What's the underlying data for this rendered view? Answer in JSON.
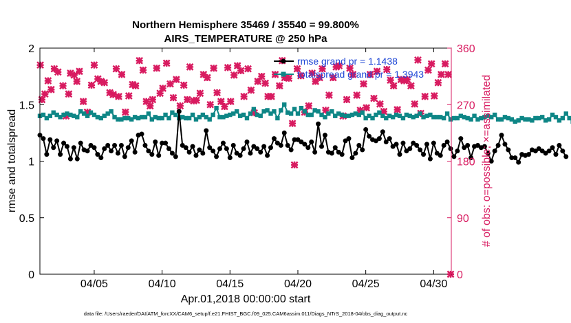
{
  "chart_data": {
    "type": "line",
    "title_line1": "Northern Hemisphere 35469 / 35540 = 99.800%",
    "title_line2": "AIRS_TEMPERATURE @ 250 hPa",
    "xlabel": "Apr.01,2018 00:00:00 start",
    "ylabel_left": "rmse and totalspread",
    "ylabel_right": "# of obs: o=possible; ×=assimilated",
    "footnote": "data file: /Users/raeder/DAI/ATM_forcXX/CAM6_setup/f.e21.FHIST_BGC.f09_025.CAM6assim.011/Diags_NTrS_2018-04/obs_diag_output.nc",
    "xlim": [
      1,
      31.3
    ],
    "ylim_left": [
      0,
      2
    ],
    "ylim_right": [
      0,
      360
    ],
    "left_ticks": [
      {
        "value": 0,
        "label": "0"
      },
      {
        "value": 0.5,
        "label": "0.5"
      },
      {
        "value": 1,
        "label": "1"
      },
      {
        "value": 1.5,
        "label": "1.5"
      },
      {
        "value": 2,
        "label": "2"
      }
    ],
    "right_ticks": [
      {
        "value": 0,
        "label": "0"
      },
      {
        "value": 90,
        "label": "90"
      },
      {
        "value": 180,
        "label": "180"
      },
      {
        "value": 270,
        "label": "270"
      },
      {
        "value": 360,
        "label": "360"
      }
    ],
    "x_ticks": [
      {
        "value": 5,
        "label": "04/05"
      },
      {
        "value": 10,
        "label": "04/10"
      },
      {
        "value": 15,
        "label": "04/15"
      },
      {
        "value": 20,
        "label": "04/20"
      },
      {
        "value": 25,
        "label": "04/25"
      },
      {
        "value": 30,
        "label": "04/30"
      }
    ],
    "series": [
      {
        "name": "rmse",
        "legend": "rmse grand pr = 1.1438",
        "color": "#000000",
        "x_start": 1.0,
        "x_step": 0.25,
        "values": [
          1.23,
          1.2,
          1.06,
          1.19,
          1.12,
          1.18,
          1.06,
          1.16,
          1.13,
          1.02,
          1.12,
          1.02,
          1.16,
          1.1,
          1.09,
          1.14,
          1.12,
          1.06,
          1.03,
          1.11,
          1.14,
          1.09,
          1.14,
          1.07,
          1.14,
          1.04,
          1.12,
          1.18,
          1.08,
          1.23,
          1.24,
          1.14,
          1.09,
          1.06,
          1.17,
          1.05,
          1.16,
          1.16,
          1.11,
          1.07,
          1.04,
          1.44,
          1.14,
          1.12,
          1.08,
          1.13,
          1.05,
          1.1,
          1.07,
          1.27,
          1.12,
          1.09,
          1.04,
          1.11,
          1.16,
          1.11,
          1.03,
          1.14,
          1.07,
          1.05,
          1.11,
          1.17,
          1.07,
          1.13,
          1.11,
          1.08,
          1.13,
          1.05,
          1.12,
          1.2,
          1.16,
          1.14,
          1.25,
          1.14,
          1.1,
          1.19,
          1.19,
          1.17,
          1.15,
          1.12,
          1.17,
          1.08,
          1.33,
          1.13,
          1.23,
          1.08,
          1.07,
          1.12,
          1.08,
          1.06,
          1.18,
          1.2,
          1.03,
          1.07,
          1.14,
          1.1,
          1.28,
          1.22,
          1.19,
          1.18,
          1.2,
          1.26,
          1.17,
          1.2,
          1.13,
          1.15,
          1.06,
          1.16,
          1.09,
          1.11,
          1.16,
          1.14,
          1.1,
          1.06,
          1.15,
          1.02,
          1.16,
          1.07,
          1.05,
          1.14,
          1.17,
          1.11,
          1.04,
          1.09,
          1.2,
          1.12,
          1.14,
          1.03,
          1.13,
          1.14,
          1.12,
          1.13,
          1.07,
          1.0,
          1.09,
          1.14,
          1.23,
          1.15,
          1.1,
          1.03,
          1.03,
          0.99,
          1.06,
          1.05,
          1.06,
          1.1,
          1.09,
          1.11,
          1.09,
          1.07,
          1.09,
          1.12,
          1.06,
          1.14,
          1.09,
          1.04
        ]
      },
      {
        "name": "totalspread",
        "legend": "totalspread grand pr = 1.3943",
        "color": "#0e8686",
        "x_start": 1.0,
        "x_step": 0.25,
        "values": [
          1.4,
          1.41,
          1.38,
          1.4,
          1.43,
          1.41,
          1.39,
          1.41,
          1.42,
          1.41,
          1.4,
          1.39,
          1.44,
          1.42,
          1.4,
          1.43,
          1.41,
          1.39,
          1.38,
          1.4,
          1.42,
          1.44,
          1.39,
          1.37,
          1.37,
          1.38,
          1.38,
          1.37,
          1.39,
          1.38,
          1.39,
          1.39,
          1.42,
          1.37,
          1.39,
          1.38,
          1.38,
          1.41,
          1.38,
          1.43,
          1.41,
          1.38,
          1.39,
          1.38,
          1.38,
          1.41,
          1.37,
          1.39,
          1.41,
          1.39,
          1.37,
          1.41,
          1.47,
          1.39,
          1.39,
          1.4,
          1.41,
          1.42,
          1.44,
          1.4,
          1.41,
          1.38,
          1.42,
          1.46,
          1.41,
          1.4,
          1.44,
          1.45,
          1.42,
          1.44,
          1.38,
          1.45,
          1.5,
          1.43,
          1.42,
          1.46,
          1.42,
          1.47,
          1.44,
          1.41,
          1.41,
          1.45,
          1.44,
          1.41,
          1.39,
          1.42,
          1.44,
          1.4,
          1.42,
          1.41,
          1.4,
          1.4,
          1.41,
          1.42,
          1.41,
          1.43,
          1.38,
          1.4,
          1.38,
          1.41,
          1.43,
          1.4,
          1.38,
          1.4,
          1.39,
          1.41,
          1.4,
          1.38,
          1.41,
          1.4,
          1.39,
          1.4,
          1.42,
          1.39,
          1.4,
          1.41,
          1.39,
          1.39,
          1.39,
          1.38,
          1.42,
          1.37,
          1.38,
          1.38,
          1.4,
          1.39,
          1.38,
          1.37,
          1.4,
          1.37,
          1.38,
          1.39,
          1.4,
          1.39,
          1.41,
          1.37,
          1.37,
          1.39,
          1.38,
          1.37,
          1.35,
          1.36,
          1.38,
          1.37,
          1.37,
          1.36,
          1.38,
          1.38,
          1.39,
          1.36,
          1.37,
          1.41,
          1.39,
          1.36,
          1.38,
          1.42,
          1.38,
          1.35
        ]
      }
    ],
    "obs_points": {
      "name": "# of obs assimilated",
      "marker_color": "#d81b60",
      "points": [
        [
          1.03,
          333
        ],
        [
          1.15,
          278
        ],
        [
          1.37,
          287
        ],
        [
          1.6,
          308
        ],
        [
          1.83,
          294
        ],
        [
          2.06,
          327
        ],
        [
          2.33,
          322
        ],
        [
          2.7,
          300
        ],
        [
          2.93,
          252
        ],
        [
          3.12,
          287
        ],
        [
          3.25,
          320
        ],
        [
          3.52,
          317
        ],
        [
          3.72,
          307
        ],
        [
          3.91,
          323
        ],
        [
          4.2,
          275
        ],
        [
          4.5,
          258
        ],
        [
          4.8,
          301
        ],
        [
          5.0,
          333
        ],
        [
          5.27,
          311
        ],
        [
          5.5,
          307
        ],
        [
          5.75,
          305
        ],
        [
          6.15,
          289
        ],
        [
          6.4,
          286
        ],
        [
          6.62,
          327
        ],
        [
          6.8,
          283
        ],
        [
          7.03,
          318
        ],
        [
          7.3,
          258
        ],
        [
          7.55,
          284
        ],
        [
          7.82,
          302
        ],
        [
          8.05,
          300
        ],
        [
          8.33,
          340
        ],
        [
          8.6,
          325
        ],
        [
          8.84,
          275
        ],
        [
          9.12,
          268
        ],
        [
          9.3,
          278
        ],
        [
          9.6,
          328
        ],
        [
          9.85,
          288
        ],
        [
          10.05,
          296
        ],
        [
          10.33,
          336
        ],
        [
          10.6,
          303
        ],
        [
          10.83,
          281
        ],
        [
          11.05,
          310
        ],
        [
          11.33,
          268
        ],
        [
          11.6,
          301
        ],
        [
          11.86,
          278
        ],
        [
          12.05,
          330
        ],
        [
          12.33,
          276
        ],
        [
          12.53,
          277
        ],
        [
          12.8,
          288
        ],
        [
          13.05,
          318
        ],
        [
          13.33,
          313
        ],
        [
          13.55,
          270
        ],
        [
          13.8,
          328
        ],
        [
          14.05,
          289
        ],
        [
          14.34,
          275
        ],
        [
          14.6,
          267
        ],
        [
          14.84,
          329
        ],
        [
          15.05,
          275
        ],
        [
          15.3,
          317
        ],
        [
          15.55,
          332
        ],
        [
          15.8,
          324
        ],
        [
          16.03,
          283
        ],
        [
          16.33,
          327
        ],
        [
          16.55,
          293
        ],
        [
          16.79,
          257
        ],
        [
          17.05,
          307
        ],
        [
          17.33,
          315
        ],
        [
          17.6,
          304
        ],
        [
          17.8,
          283
        ],
        [
          18.05,
          283
        ],
        [
          18.33,
          318
        ],
        [
          18.65,
          300
        ],
        [
          18.85,
          340
        ],
        [
          19.03,
          313
        ],
        [
          19.33,
          312
        ],
        [
          19.6,
          240
        ],
        [
          19.75,
          174
        ],
        [
          19.95,
          327
        ],
        [
          20.22,
          316
        ],
        [
          20.5,
          258
        ],
        [
          20.8,
          268
        ],
        [
          21.05,
          320
        ],
        [
          21.3,
          307
        ],
        [
          21.6,
          313
        ],
        [
          21.8,
          327
        ],
        [
          22.05,
          261
        ],
        [
          22.3,
          285
        ],
        [
          22.6,
          313
        ],
        [
          22.82,
          330
        ],
        [
          23.03,
          332
        ],
        [
          23.33,
          252
        ],
        [
          23.6,
          278
        ],
        [
          23.83,
          328
        ],
        [
          24.05,
          318
        ],
        [
          24.34,
          285
        ],
        [
          24.6,
          261
        ],
        [
          24.84,
          303
        ],
        [
          25.05,
          265
        ],
        [
          25.33,
          318
        ],
        [
          25.6,
          280
        ],
        [
          25.83,
          323
        ],
        [
          26.05,
          271
        ],
        [
          26.33,
          259
        ],
        [
          26.55,
          326
        ],
        [
          26.82,
          309
        ],
        [
          27.05,
          300
        ],
        [
          27.33,
          262
        ],
        [
          27.6,
          310
        ],
        [
          27.83,
          308
        ],
        [
          28.05,
          310
        ],
        [
          28.33,
          300
        ],
        [
          28.6,
          271
        ],
        [
          28.84,
          341
        ],
        [
          29.05,
          256
        ],
        [
          29.36,
          283
        ],
        [
          29.6,
          325
        ],
        [
          29.84,
          335
        ],
        [
          30.05,
          284
        ],
        [
          30.33,
          305
        ],
        [
          30.56,
          318
        ],
        [
          30.85,
          335
        ],
        [
          31.08,
          318
        ],
        [
          31.25,
          0
        ]
      ]
    }
  }
}
